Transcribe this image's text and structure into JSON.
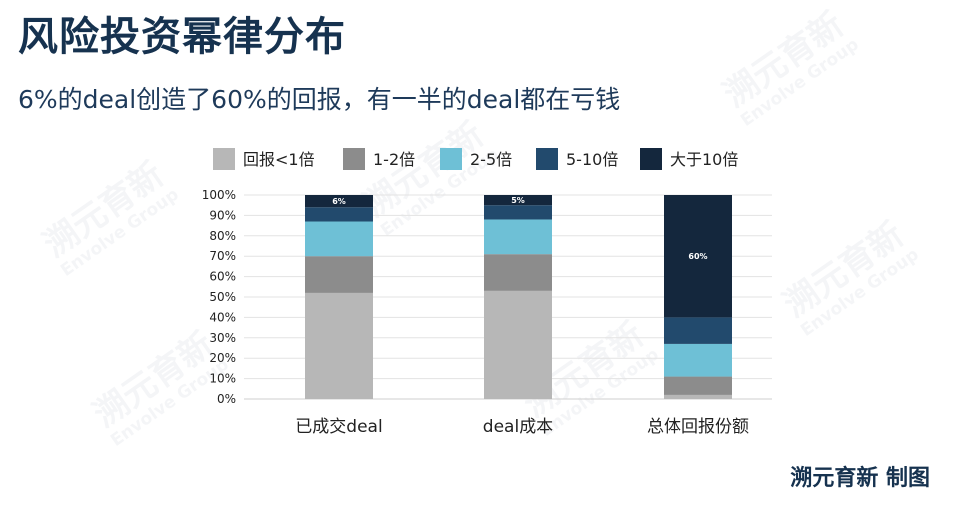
{
  "title": "风险投资幂律分布",
  "subtitle": "6%的deal创造了60%的回报，有一半的deal都在亏钱",
  "watermark": {
    "main": "溯元育新",
    "sub": "Envolve Group"
  },
  "credit": "溯元育新 制图",
  "colors": {
    "回报<1倍": "#b7b7b7",
    "1-2倍": "#8c8c8c",
    "2-5倍": "#6ec0d6",
    "5-10倍": "#224a6d",
    "大于10倍": "#14273d"
  },
  "chart_data": {
    "type": "bar",
    "stacked": true,
    "categories": [
      "已成交deal",
      "deal成本",
      "总体回报份额"
    ],
    "series": [
      {
        "name": "回报<1倍",
        "values": [
          52,
          53,
          2
        ]
      },
      {
        "name": "1-2倍",
        "values": [
          18,
          18,
          9
        ]
      },
      {
        "name": "2-5倍",
        "values": [
          17,
          17,
          16
        ]
      },
      {
        "name": "5-10倍",
        "values": [
          7,
          7,
          13
        ]
      },
      {
        "name": "大于10倍",
        "values": [
          6,
          5,
          60
        ]
      }
    ],
    "data_labels": [
      "6%",
      "5%",
      "60%"
    ],
    "yticks": [
      "0%",
      "10%",
      "20%",
      "30%",
      "40%",
      "50%",
      "60%",
      "70%",
      "80%",
      "90%",
      "100%"
    ],
    "ylim": [
      0,
      100
    ],
    "grid": true,
    "legend_position": "top"
  }
}
